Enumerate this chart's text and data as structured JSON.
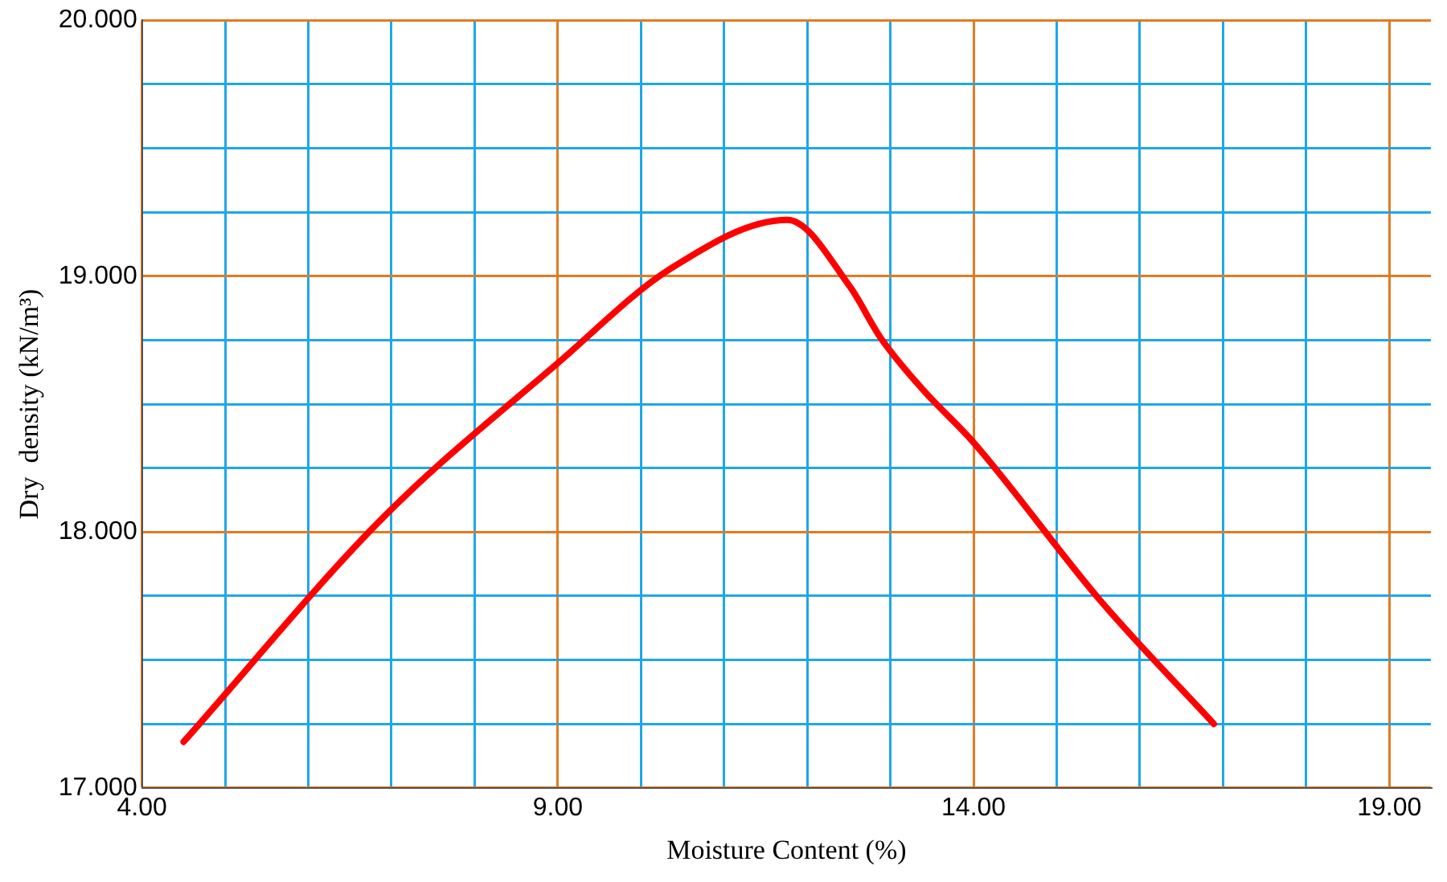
{
  "chart_data": {
    "type": "line",
    "xlabel": "Moisture Content (%)",
    "ylabel": "Dry  density (kN/m³)",
    "x": [
      4.5,
      6.91,
      9.0,
      10.36,
      11.76,
      12.51,
      12.88,
      13.38,
      14.0,
      15.53,
      16.89
    ],
    "series": [
      {
        "color": "#ff0000",
        "values": [
          17.18,
          18.06,
          18.66,
          19.03,
          19.22,
          18.96,
          18.76,
          18.56,
          18.35,
          17.73,
          17.25
        ]
      }
    ],
    "xlim": [
      4,
      19.5
    ],
    "xticks": [
      {
        "value": 4,
        "label": "4.00"
      },
      {
        "value": 5,
        "label": null
      },
      {
        "value": 6,
        "label": null
      },
      {
        "value": 7,
        "label": null
      },
      {
        "value": 8,
        "label": null
      },
      {
        "value": 9,
        "label": "9.00"
      },
      {
        "value": 10,
        "label": null
      },
      {
        "value": 11,
        "label": null
      },
      {
        "value": 12,
        "label": null
      },
      {
        "value": 13,
        "label": null
      },
      {
        "value": 14,
        "label": "14.00"
      },
      {
        "value": 15,
        "label": null
      },
      {
        "value": 16,
        "label": null
      },
      {
        "value": 17,
        "label": null
      },
      {
        "value": 18,
        "label": null
      },
      {
        "value": 19,
        "label": "19.00"
      }
    ],
    "ylim": [
      17,
      20
    ],
    "yticks": [
      {
        "value": 17,
        "label": "17.000"
      },
      {
        "value": 17.25,
        "label": null
      },
      {
        "value": 17.5,
        "label": null
      },
      {
        "value": 17.75,
        "label": null
      },
      {
        "value": 18,
        "label": "18.000"
      },
      {
        "value": 18.25,
        "label": null
      },
      {
        "value": 18.5,
        "label": null
      },
      {
        "value": 18.75,
        "label": null
      },
      {
        "value": 19,
        "label": "19.000"
      },
      {
        "value": 19.25,
        "label": null
      },
      {
        "value": 19.5,
        "label": null
      },
      {
        "value": 19.75,
        "label": null
      },
      {
        "value": 20,
        "label": "20.000"
      }
    ],
    "grid": true,
    "legend": false,
    "marker": "none",
    "line_style": "solid"
  }
}
